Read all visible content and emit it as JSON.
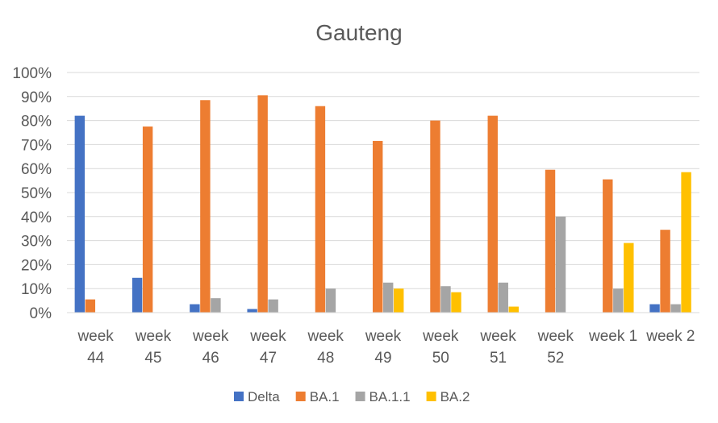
{
  "chart_data": {
    "type": "bar",
    "title": "Gauteng",
    "xlabel": "",
    "ylabel": "",
    "categories": [
      [
        "week",
        "44"
      ],
      [
        "week",
        "45"
      ],
      [
        "week",
        "46"
      ],
      [
        "week",
        "47"
      ],
      [
        "week",
        "48"
      ],
      [
        "week",
        "49"
      ],
      [
        "week",
        "50"
      ],
      [
        "week",
        "51"
      ],
      [
        "week",
        "52"
      ],
      [
        "week 1"
      ],
      [
        "week 2"
      ]
    ],
    "series": [
      {
        "name": "Delta",
        "color": "#4472c4",
        "values": [
          82,
          14.5,
          3.5,
          1.5,
          0,
          0,
          0,
          0,
          0,
          0,
          3.5
        ]
      },
      {
        "name": "BA.1",
        "color": "#ed7d31",
        "values": [
          5.5,
          77.5,
          88.5,
          90.5,
          86,
          71.5,
          80,
          82,
          59.5,
          55.5,
          34.5
        ]
      },
      {
        "name": "BA.1.1",
        "color": "#a5a5a5",
        "values": [
          0,
          0,
          6,
          5.5,
          10,
          12.5,
          11,
          12.5,
          40,
          10,
          3.5
        ]
      },
      {
        "name": "BA.2",
        "color": "#ffc000",
        "values": [
          0,
          0,
          0,
          0,
          0,
          10,
          8.5,
          2.5,
          0,
          29,
          58.5
        ]
      }
    ],
    "ylim": [
      0,
      100
    ],
    "yticks": [
      "0%",
      "10%",
      "20%",
      "30%",
      "40%",
      "50%",
      "60%",
      "70%",
      "80%",
      "90%",
      "100%"
    ],
    "grid": true,
    "legend_position": "bottom"
  }
}
